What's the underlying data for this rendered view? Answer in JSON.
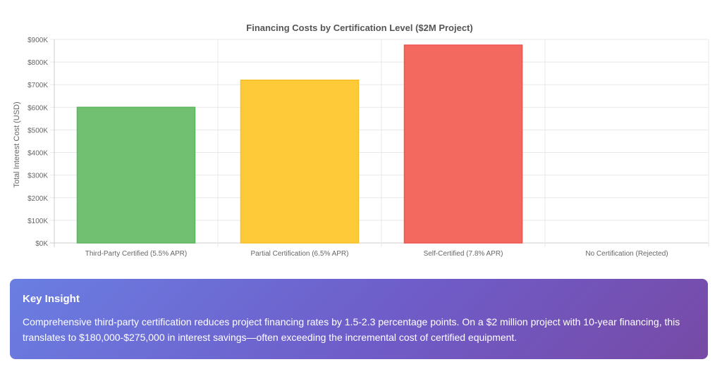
{
  "chart_data": {
    "type": "bar",
    "title": "Financing Costs by Certification Level ($2M Project)",
    "xlabel": "",
    "ylabel": "Total Interest Cost (USD)",
    "categories": [
      "Third-Party Certified (5.5% APR)",
      "Partial Certification (6.5% APR)",
      "Self-Certified (7.8% APR)",
      "No Certification (Rejected)"
    ],
    "values": [
      600000,
      720000,
      875000,
      0
    ],
    "colors": [
      "#71bf71",
      "#ffca3a",
      "#f4695f",
      "#cccccc"
    ],
    "border_colors": [
      "#5cb85c",
      "#f5c025",
      "#ef5350",
      "#cccccc"
    ],
    "ylim": [
      0,
      900000
    ],
    "yticks": [
      0,
      100000,
      200000,
      300000,
      400000,
      500000,
      600000,
      700000,
      800000,
      900000
    ],
    "ytick_labels": [
      "$0K",
      "$100K",
      "$200K",
      "$300K",
      "$400K",
      "$500K",
      "$600K",
      "$700K",
      "$800K",
      "$900K"
    ],
    "grid": true,
    "legend": "none"
  },
  "insight": {
    "title": "Key Insight",
    "text": "Comprehensive third-party certification reduces project financing rates by 1.5-2.3 percentage points. On a $2 million project with 10-year financing, this translates to $180,000-$275,000 in interest savings—often exceeding the incremental cost of certified equipment."
  }
}
